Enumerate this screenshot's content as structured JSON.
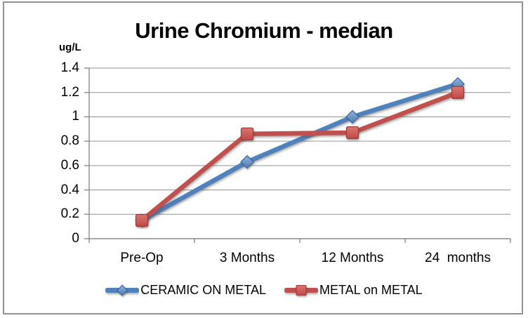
{
  "frame": {
    "border_color": "#929292",
    "background": "#ffffff"
  },
  "chart_data": {
    "type": "line",
    "title": "Urine Chromium - median",
    "y_axis_label": "ug/L",
    "categories": [
      "Pre-Op",
      "3 Months",
      "12 Months",
      "24  months"
    ],
    "y_tick_labels": [
      "0",
      "0.2",
      "0.4",
      "0.6",
      "0.8",
      "1",
      "1.2",
      "1.4"
    ],
    "y_tick_values": [
      0,
      0.2,
      0.4,
      0.6,
      0.8,
      1,
      1.2,
      1.4
    ],
    "ylim": [
      0,
      1.4
    ],
    "grid": true,
    "legend_position": "bottom",
    "axis_color": "#8A8A8A",
    "gridline_color": "#A8A8A8",
    "series": [
      {
        "name": "CERAMIC ON METAL",
        "marker": "diamond",
        "color": "#4F81BD",
        "marker_fill_top": "#8FB2DC",
        "marker_fill_bottom": "#4E7DB5",
        "marker_stroke": "#3C6799",
        "values": [
          0.15,
          0.63,
          1.0,
          1.27
        ]
      },
      {
        "name": "METAL on METAL",
        "marker": "square",
        "color": "#C0504D",
        "marker_fill_top": "#DB7470",
        "marker_fill_bottom": "#C04A46",
        "marker_stroke": "#9A3C39",
        "values": [
          0.15,
          0.86,
          0.87,
          1.2
        ]
      }
    ]
  }
}
